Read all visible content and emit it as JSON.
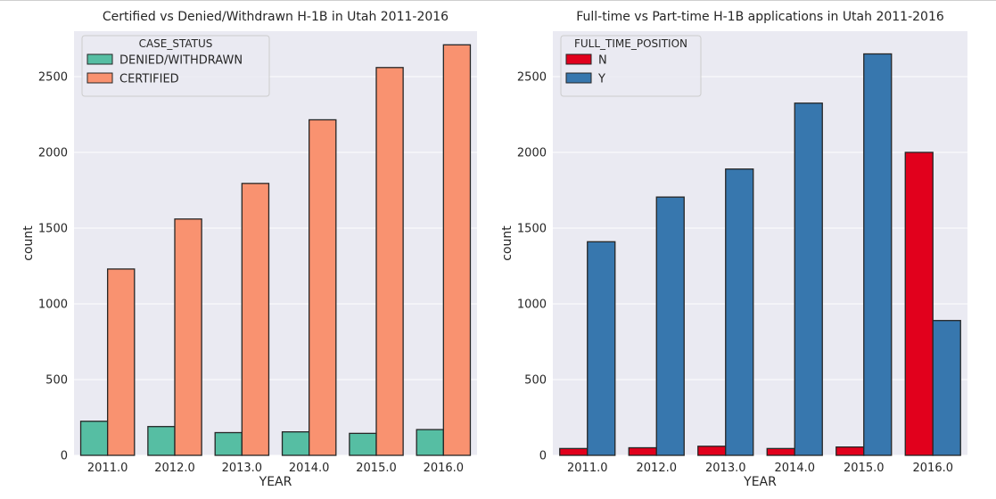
{
  "chart_data": [
    {
      "type": "bar",
      "title": "Certified vs Denied/Withdrawn H-1B in Utah 2011-2016",
      "xlabel": "YEAR",
      "ylabel": "count",
      "categories": [
        "2011.0",
        "2012.0",
        "2013.0",
        "2014.0",
        "2015.0",
        "2016.0"
      ],
      "ylim": [
        0,
        2800
      ],
      "yticks": [
        0,
        500,
        1000,
        1500,
        2000,
        2500
      ],
      "grid": true,
      "legend_title": "CASE_STATUS",
      "legend_position": "top-left",
      "series": [
        {
          "name": "DENIED/WITHDRAWN",
          "color": "#56BEA3",
          "values": [
            225,
            190,
            150,
            155,
            145,
            170
          ]
        },
        {
          "name": "CERTIFIED",
          "color": "#F99270",
          "values": [
            1230,
            1560,
            1795,
            2215,
            2560,
            2710
          ]
        }
      ]
    },
    {
      "type": "bar",
      "title": "Full-time vs Part-time H-1B applications in Utah 2011-2016",
      "xlabel": "YEAR",
      "ylabel": "count",
      "categories": [
        "2011.0",
        "2012.0",
        "2013.0",
        "2014.0",
        "2015.0",
        "2016.0"
      ],
      "ylim": [
        0,
        2800
      ],
      "yticks": [
        0,
        500,
        1000,
        1500,
        2000,
        2500
      ],
      "grid": true,
      "legend_title": "FULL_TIME_POSITION",
      "legend_position": "top-left",
      "series": [
        {
          "name": "N",
          "color": "#E1001C",
          "values": [
            45,
            50,
            60,
            45,
            55,
            2000
          ]
        },
        {
          "name": "Y",
          "color": "#3777AE",
          "values": [
            1410,
            1705,
            1890,
            2325,
            2650,
            890
          ]
        }
      ]
    }
  ],
  "style": {
    "plot_background": "#EAEAF2",
    "grid_color": "#FFFFFF",
    "bar_edge": "#262626"
  }
}
